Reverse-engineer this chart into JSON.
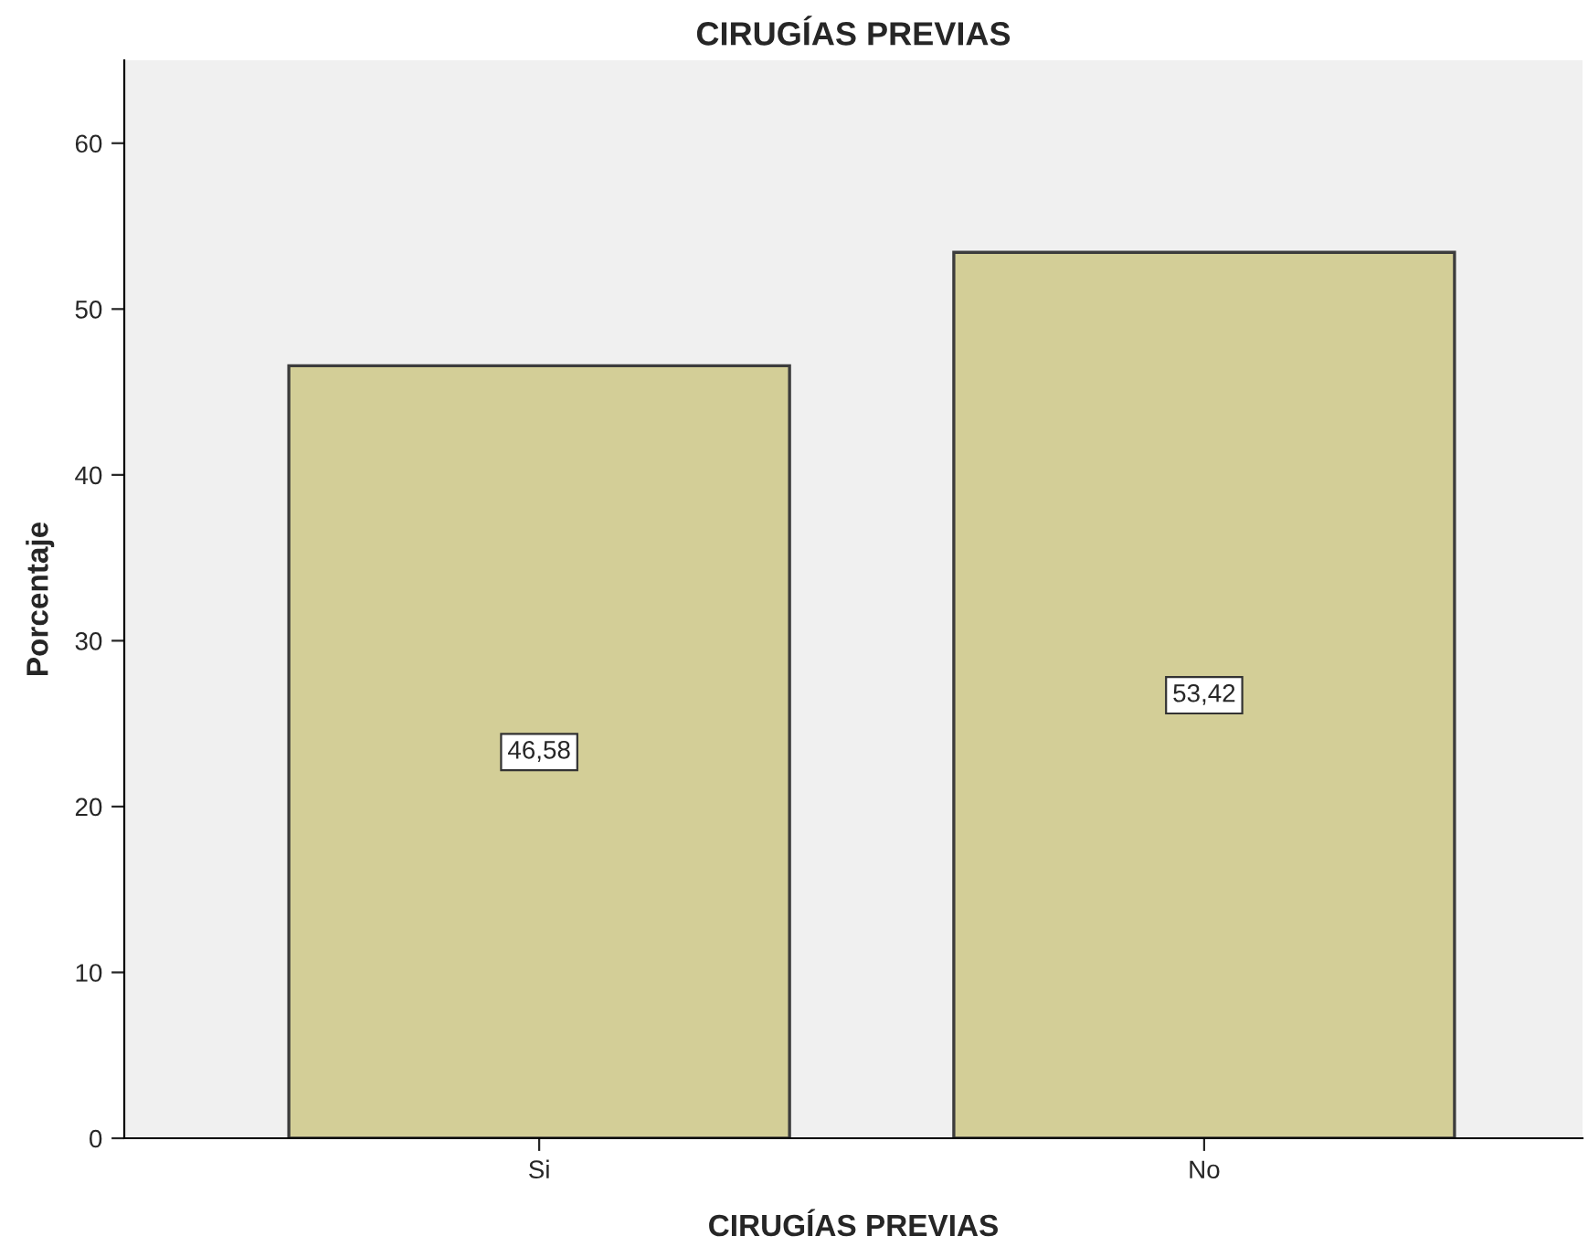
{
  "chart_data": {
    "type": "bar",
    "title": "CIRUGÍAS PREVIAS",
    "xlabel": "CIRUGÍAS PREVIAS",
    "ylabel": "Porcentaje",
    "categories": [
      "Si",
      "No"
    ],
    "values": [
      46.58,
      53.42
    ],
    "value_labels": [
      "46,58",
      "53,42"
    ],
    "color": "#d3ce97",
    "ylim": [
      0,
      65
    ],
    "yticks": [
      0,
      10,
      20,
      30,
      40,
      50,
      60
    ],
    "grid": false
  }
}
